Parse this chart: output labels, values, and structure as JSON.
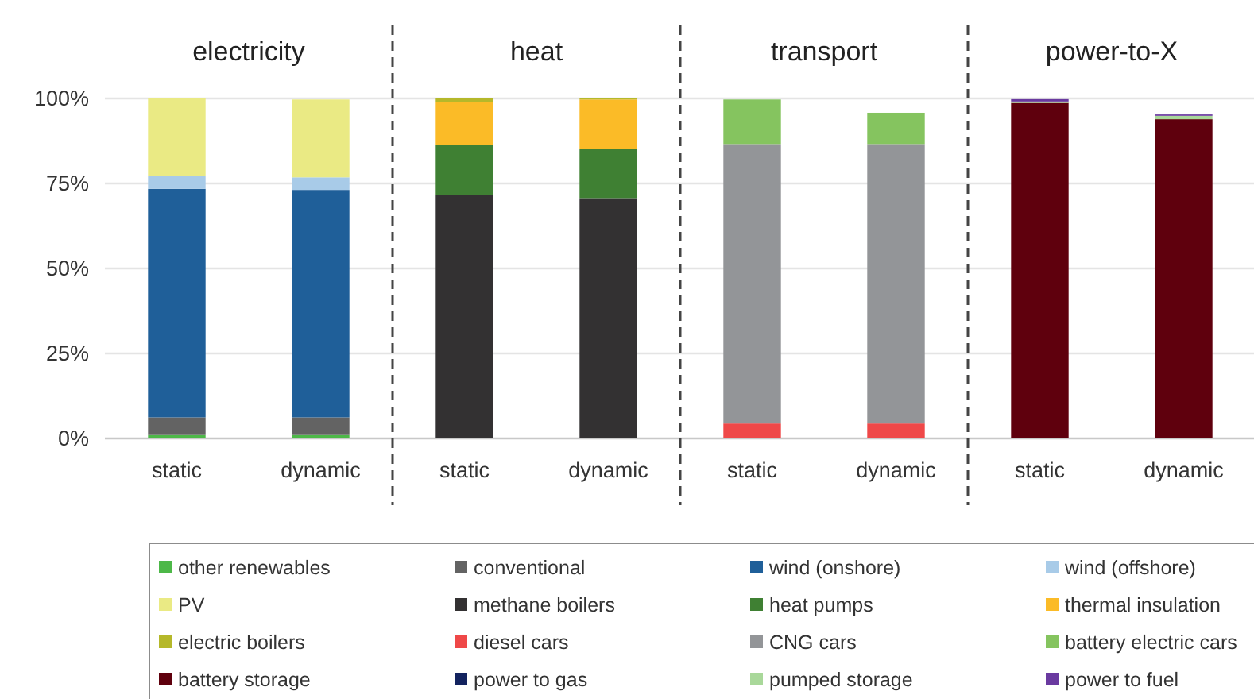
{
  "chart_data": {
    "type": "bar",
    "stacked": true,
    "categories": [
      "static",
      "dynamic",
      "static",
      "dynamic",
      "static",
      "dynamic",
      "static",
      "dynamic"
    ],
    "annotations": [
      "electricity",
      "heat",
      "transport",
      "power-to-X"
    ],
    "ylim": [
      0,
      100
    ],
    "yticks": [
      {
        "value": 0,
        "label": "0%"
      },
      {
        "value": 25,
        "label": "25%"
      },
      {
        "value": 50,
        "label": "50%"
      },
      {
        "value": 75,
        "label": "75%"
      },
      {
        "value": 100,
        "label": "100%"
      }
    ],
    "grid": "y",
    "legend": "bottom",
    "series": [
      {
        "name": "other renewables",
        "color": "#4db848",
        "values": [
          1,
          1,
          null,
          null,
          null,
          null,
          null,
          null
        ]
      },
      {
        "name": "conventional",
        "color": "#636363",
        "values": [
          5.2,
          5.2,
          null,
          null,
          null,
          null,
          null,
          null
        ]
      },
      {
        "name": "wind (onshore)",
        "color": "#1f5f99",
        "values": [
          67.2,
          66.9,
          null,
          null,
          null,
          null,
          null,
          null
        ]
      },
      {
        "name": "wind (offshore)",
        "color": "#a8cbe8",
        "values": [
          3.7,
          3.7,
          null,
          null,
          null,
          null,
          null,
          null
        ]
      },
      {
        "name": "PV",
        "color": "#eaea84",
        "values": [
          22.9,
          22.9,
          null,
          null,
          null,
          null,
          null,
          null
        ]
      },
      {
        "name": "methane boilers",
        "color": "#333132",
        "values": [
          null,
          null,
          71.6,
          70.7,
          null,
          null,
          null,
          null
        ]
      },
      {
        "name": "heat pumps",
        "color": "#3f8033",
        "values": [
          null,
          null,
          14.8,
          14.5,
          null,
          null,
          null,
          null
        ]
      },
      {
        "name": "thermal insulation",
        "color": "#fbbb27",
        "values": [
          null,
          null,
          12.6,
          14.5,
          null,
          null,
          null,
          null
        ]
      },
      {
        "name": "electric boilers",
        "color": "#b5b82a",
        "values": [
          null,
          null,
          1,
          0.3,
          null,
          null,
          null,
          null
        ]
      },
      {
        "name": "diesel cars",
        "color": "#ef4848",
        "values": [
          null,
          null,
          null,
          null,
          4.4,
          4.4,
          null,
          null
        ]
      },
      {
        "name": "CNG cars",
        "color": "#939598",
        "values": [
          null,
          null,
          null,
          null,
          82.2,
          82.2,
          null,
          null
        ]
      },
      {
        "name": "battery electric cars",
        "color": "#85c45f",
        "values": [
          null,
          null,
          null,
          null,
          13.1,
          9.2,
          null,
          null
        ]
      },
      {
        "name": "battery storage",
        "color": "#5f000d",
        "values": [
          null,
          null,
          null,
          null,
          null,
          null,
          98.7,
          93.9
        ]
      },
      {
        "name": "power to gas",
        "color": "#13235f",
        "values": [
          null,
          null,
          null,
          null,
          null,
          null,
          0,
          0
        ]
      },
      {
        "name": "pumped storage",
        "color": "#a9d89a",
        "values": [
          null,
          null,
          null,
          null,
          null,
          null,
          0.4,
          1
        ]
      },
      {
        "name": "power to fuel",
        "color": "#6a3aa0",
        "values": [
          null,
          null,
          null,
          null,
          null,
          null,
          0.7,
          0.4
        ]
      }
    ]
  }
}
